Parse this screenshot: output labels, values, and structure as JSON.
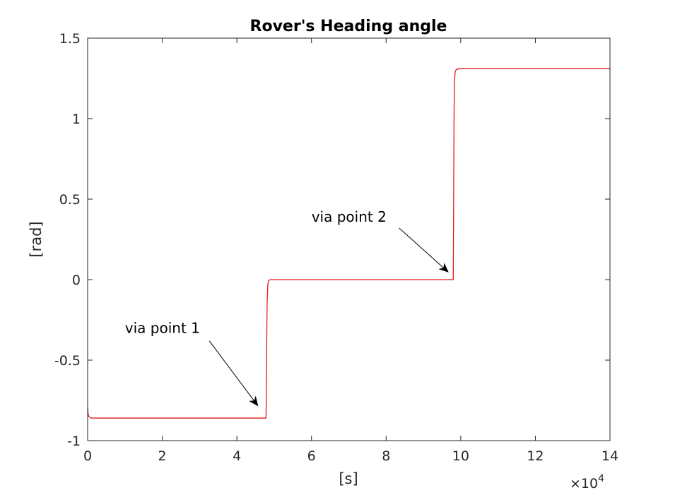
{
  "chart_data": {
    "type": "line",
    "title": "Rover's Heading angle",
    "xlabel": "[s]",
    "ylabel": "[rad]",
    "xlim": [
      0,
      140000
    ],
    "ylim": [
      -1,
      1.5
    ],
    "x_ticks": [
      0,
      20000,
      40000,
      60000,
      80000,
      100000,
      120000,
      140000
    ],
    "x_tick_labels": [
      "0",
      "2",
      "4",
      "6",
      "8",
      "10",
      "12",
      "14"
    ],
    "x_exponent": {
      "base": "×10",
      "power": "4"
    },
    "y_ticks": [
      -1,
      -0.5,
      0,
      0.5,
      1,
      1.5
    ],
    "y_tick_labels": [
      "-1",
      "-0.5",
      "0",
      "0.5",
      "1",
      "1.5"
    ],
    "grid": false,
    "series": [
      {
        "color": "#e41a1c",
        "x": [
          0,
          100,
          300,
          600,
          1000,
          47800,
          47900,
          48000,
          48100,
          48300,
          48500,
          49000,
          98000,
          98100,
          98200,
          98300,
          98500,
          98800,
          99500,
          140000
        ],
        "y": [
          -0.79,
          -0.83,
          -0.85,
          -0.855,
          -0.86,
          -0.86,
          -0.7,
          -0.4,
          -0.15,
          -0.03,
          -0.005,
          0,
          0,
          0.5,
          1.0,
          1.22,
          1.29,
          1.305,
          1.31,
          1.31
        ]
      }
    ],
    "annotations": [
      {
        "text": "via point 1",
        "text_x": 10000,
        "text_y": -0.3,
        "arrow_from_x": 32600,
        "arrow_from_y": -0.38,
        "arrow_to_x": 45500,
        "arrow_to_y": -0.78
      },
      {
        "text": "via point 2",
        "text_x": 60000,
        "text_y": 0.39,
        "arrow_from_x": 83500,
        "arrow_from_y": 0.32,
        "arrow_to_x": 96500,
        "arrow_to_y": 0.05
      }
    ]
  }
}
